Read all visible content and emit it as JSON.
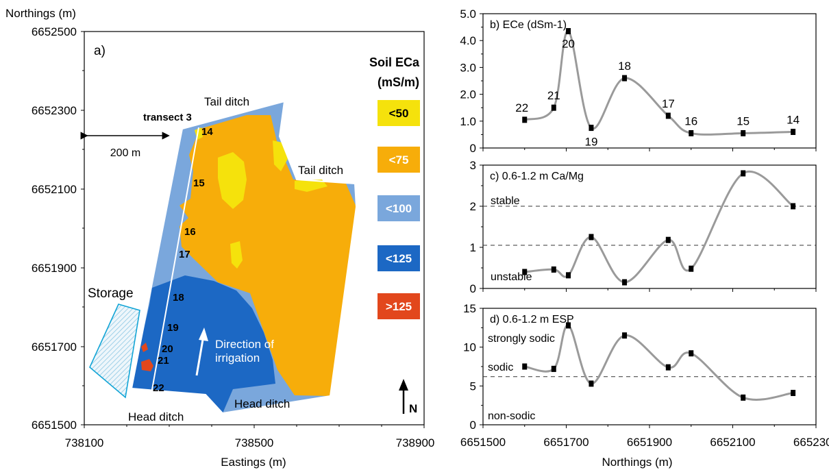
{
  "map_panel": {
    "title": "a)",
    "ylabel": "Northings (m)",
    "xlabel": "Eastings (m)",
    "y_ticks": [
      "6652500",
      "6652300",
      "6652100",
      "6651900",
      "6651700",
      "6651500"
    ],
    "x_ticks": [
      "738100",
      "738500",
      "738900"
    ],
    "legend_title_1": "Soil ECa",
    "legend_title_2": "(mS/m)",
    "legend": [
      {
        "label": "<50",
        "color": "#f5e20c"
      },
      {
        "label": "<75",
        "color": "#f7ad0a"
      },
      {
        "label": "<100",
        "color": "#7aa7dc"
      },
      {
        "label": "<125",
        "color": "#1c68c4"
      },
      {
        "label": ">125",
        "color": "#e2471c"
      }
    ],
    "labels": {
      "tail_ditch_top": "Tail ditch",
      "tail_ditch_right": "Tail ditch",
      "head_ditch_left": "Head ditch",
      "head_ditch_right": "Head ditch",
      "storage": "Storage",
      "transect": "transect 3",
      "scale": "200 m",
      "direction_1": "Direction of",
      "direction_2": "irrigation",
      "north": "N"
    },
    "sites": [
      "14",
      "15",
      "16",
      "17",
      "18",
      "19",
      "20",
      "21",
      "22"
    ]
  },
  "chart_data": [
    {
      "type": "line",
      "title": "b) ECe (dSm-1)",
      "ylim": [
        0,
        5
      ],
      "y_ticks": [
        "0",
        "1.0",
        "2.0",
        "3.0",
        "4.0",
        "5.0"
      ],
      "x_ticks": [],
      "points": [
        {
          "x": 6651600,
          "y": 1.05,
          "label": "22"
        },
        {
          "x": 6651670,
          "y": 1.5,
          "label": "21"
        },
        {
          "x": 6651705,
          "y": 4.35,
          "label": "20"
        },
        {
          "x": 6651760,
          "y": 0.75,
          "label": "19"
        },
        {
          "x": 6651840,
          "y": 2.6,
          "label": "18"
        },
        {
          "x": 6651945,
          "y": 1.2,
          "label": "17"
        },
        {
          "x": 6652000,
          "y": 0.55,
          "label": "16"
        },
        {
          "x": 6652125,
          "y": 0.55,
          "label": "15"
        },
        {
          "x": 6652245,
          "y": 0.6,
          "label": "14"
        }
      ]
    },
    {
      "type": "line",
      "title": "c) 0.6-1.2 m Ca/Mg",
      "ylim": [
        0,
        3
      ],
      "y_ticks": [
        "0",
        "1",
        "2",
        "3"
      ],
      "x_ticks": [],
      "points": [
        {
          "x": 6651600,
          "y": 0.4
        },
        {
          "x": 6651670,
          "y": 0.46
        },
        {
          "x": 6651705,
          "y": 0.32
        },
        {
          "x": 6651760,
          "y": 1.25
        },
        {
          "x": 6651840,
          "y": 0.15
        },
        {
          "x": 6651945,
          "y": 1.18
        },
        {
          "x": 6652000,
          "y": 0.48
        },
        {
          "x": 6652125,
          "y": 2.8
        },
        {
          "x": 6652245,
          "y": 2.0
        }
      ],
      "reference_lines": [
        {
          "y": 2,
          "label": "stable"
        },
        {
          "y": 1.05,
          "label": "unstable"
        }
      ]
    },
    {
      "type": "line",
      "title": "d) 0.6-1.2 m ESP",
      "xlabel": "Northings (m)",
      "ylim": [
        0,
        15
      ],
      "y_ticks": [
        "0",
        "5",
        "10",
        "15"
      ],
      "x_ticks": [
        "6651500",
        "6651700",
        "6651900",
        "6652100",
        "6652300"
      ],
      "points": [
        {
          "x": 6651600,
          "y": 7.5
        },
        {
          "x": 6651670,
          "y": 7.2
        },
        {
          "x": 6651705,
          "y": 12.8
        },
        {
          "x": 6651760,
          "y": 5.3
        },
        {
          "x": 6651840,
          "y": 11.5
        },
        {
          "x": 6651945,
          "y": 7.4
        },
        {
          "x": 6652000,
          "y": 9.2
        },
        {
          "x": 6652125,
          "y": 3.5
        },
        {
          "x": 6652245,
          "y": 4.1
        }
      ],
      "reference_lines": [
        {
          "y": 6.2,
          "label": "sodic"
        }
      ],
      "zone_labels": [
        "strongly sodic",
        "non-sodic"
      ]
    }
  ]
}
